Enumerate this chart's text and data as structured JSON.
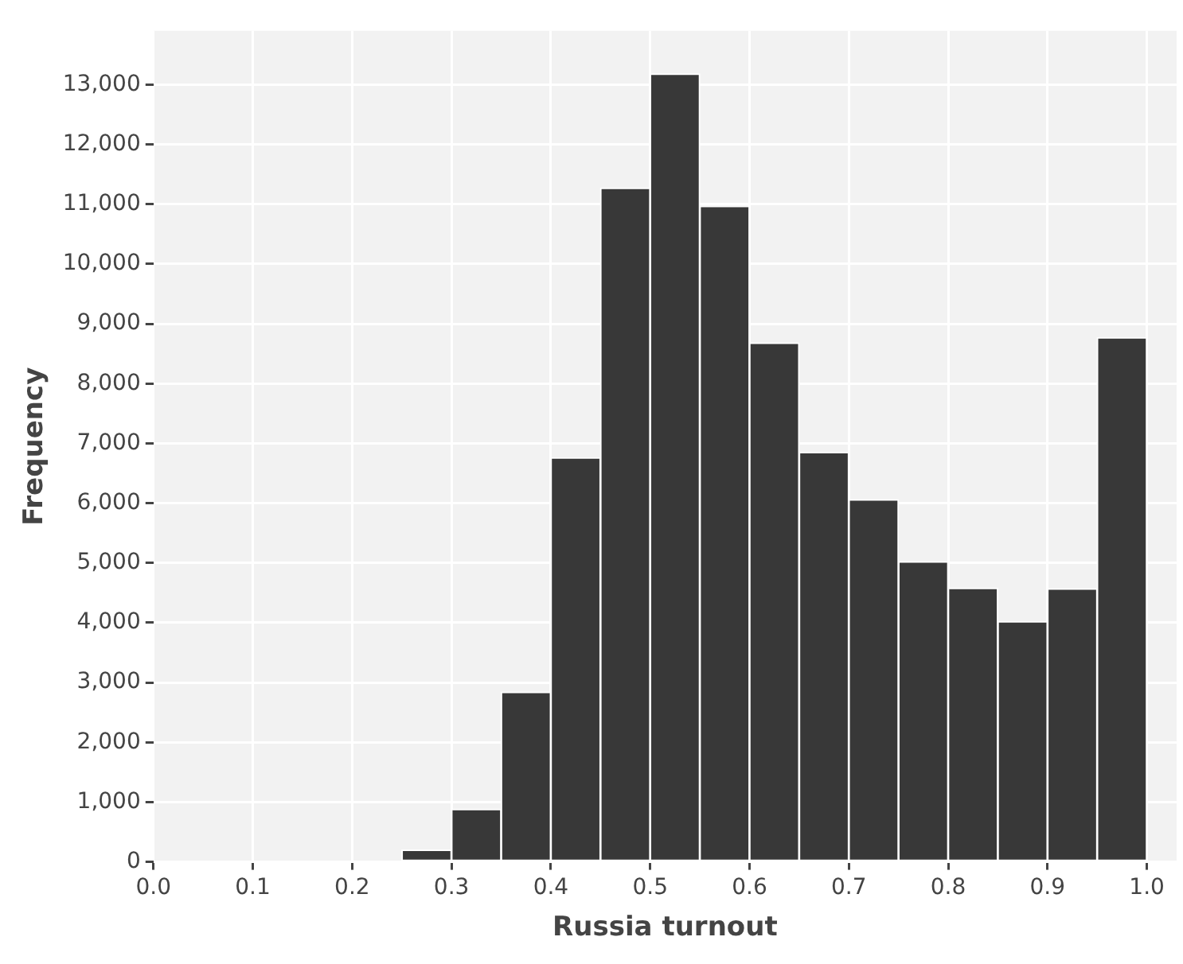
{
  "chart_data": {
    "type": "histogram",
    "xlabel": "Russia turnout",
    "ylabel": "Frequency",
    "bins": [
      0.25,
      0.3,
      0.35,
      0.4,
      0.45,
      0.5,
      0.55,
      0.6,
      0.65,
      0.7,
      0.75,
      0.8,
      0.85,
      0.9,
      0.95,
      1.0
    ],
    "values": [
      200,
      880,
      2840,
      6760,
      11270,
      13180,
      10970,
      8680,
      6850,
      6060,
      5020,
      4580,
      4020,
      4570,
      8770
    ],
    "color": "#383838",
    "xlim": [
      0,
      1.03
    ],
    "xticks": [
      {
        "value": 0,
        "label": "0.0"
      },
      0.1,
      0.2,
      0.3,
      0.4,
      0.5,
      0.6,
      0.7,
      0.8,
      0.9,
      {
        "value": 1,
        "label": "1.0"
      }
    ],
    "ylim": [
      0,
      13900
    ],
    "yticks": [
      0,
      {
        "value": 1000,
        "label": "1,000"
      },
      {
        "value": 2000,
        "label": "2,000"
      },
      {
        "value": 3000,
        "label": "3,000"
      },
      {
        "value": 4000,
        "label": "4,000"
      },
      {
        "value": 5000,
        "label": "5,000"
      },
      {
        "value": 6000,
        "label": "6,000"
      },
      {
        "value": 7000,
        "label": "7,000"
      },
      {
        "value": 8000,
        "label": "8,000"
      },
      {
        "value": 9000,
        "label": "9,000"
      },
      {
        "value": 10000,
        "label": "10,000"
      },
      {
        "value": 11000,
        "label": "11,000"
      },
      {
        "value": 12000,
        "label": "12,000"
      },
      {
        "value": 13000,
        "label": "13,000"
      }
    ],
    "grid": true
  }
}
